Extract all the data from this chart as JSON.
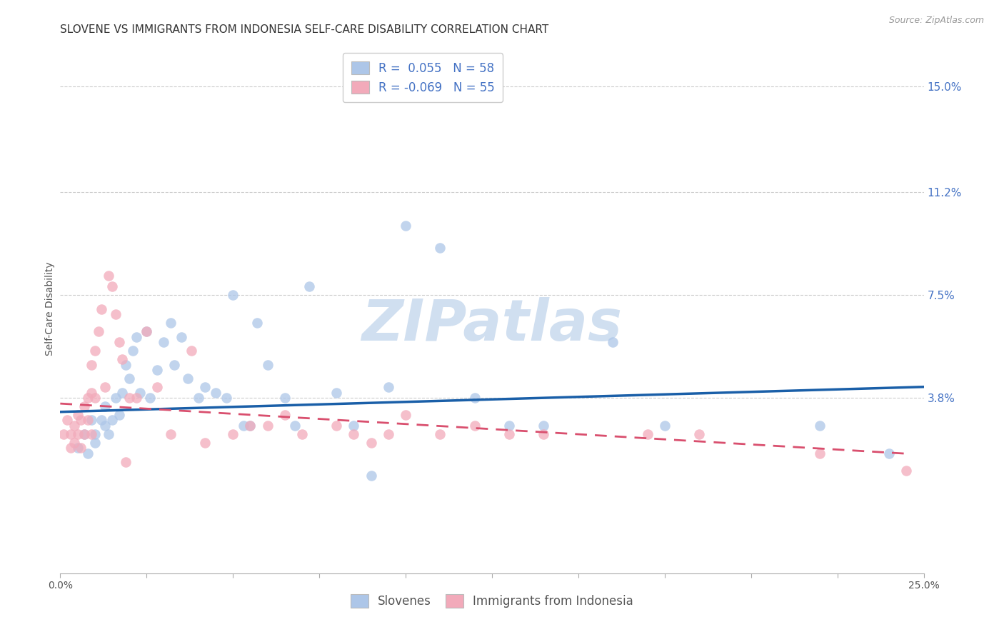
{
  "title": "SLOVENE VS IMMIGRANTS FROM INDONESIA SELF-CARE DISABILITY CORRELATION CHART",
  "source": "Source: ZipAtlas.com",
  "ylabel": "Self-Care Disability",
  "watermark": "ZIPatlas",
  "legend_entries": [
    {
      "label": "R =  0.055   N = 58",
      "color": "#adc6e8"
    },
    {
      "label": "R = -0.069   N = 55",
      "color": "#f2aaba"
    }
  ],
  "legend_labels": [
    "Slovenes",
    "Immigrants from Indonesia"
  ],
  "xlim": [
    0.0,
    0.25
  ],
  "ylim": [
    -0.025,
    0.165
  ],
  "right_yticks": [
    0.038,
    0.075,
    0.112,
    0.15
  ],
  "right_yticklabels": [
    "3.8%",
    "7.5%",
    "11.2%",
    "15.0%"
  ],
  "xticks": [
    0.0,
    0.025,
    0.05,
    0.075,
    0.1,
    0.125,
    0.15,
    0.175,
    0.2,
    0.225,
    0.25
  ],
  "xticklabels": [
    "0.0%",
    "",
    "",
    "",
    "",
    "",
    "",
    "",
    "",
    "",
    "25.0%"
  ],
  "blue_scatter_x": [
    0.005,
    0.007,
    0.008,
    0.009,
    0.01,
    0.01,
    0.012,
    0.013,
    0.013,
    0.014,
    0.015,
    0.016,
    0.017,
    0.018,
    0.019,
    0.02,
    0.021,
    0.022,
    0.023,
    0.025,
    0.026,
    0.028,
    0.03,
    0.032,
    0.033,
    0.035,
    0.037,
    0.04,
    0.042,
    0.045,
    0.048,
    0.05,
    0.053,
    0.055,
    0.057,
    0.06,
    0.065,
    0.068,
    0.072,
    0.08,
    0.085,
    0.09,
    0.095,
    0.1,
    0.11,
    0.12,
    0.13,
    0.14,
    0.16,
    0.175,
    0.22,
    0.24
  ],
  "blue_scatter_y": [
    0.02,
    0.025,
    0.018,
    0.03,
    0.025,
    0.022,
    0.03,
    0.028,
    0.035,
    0.025,
    0.03,
    0.038,
    0.032,
    0.04,
    0.05,
    0.045,
    0.055,
    0.06,
    0.04,
    0.062,
    0.038,
    0.048,
    0.058,
    0.065,
    0.05,
    0.06,
    0.045,
    0.038,
    0.042,
    0.04,
    0.038,
    0.075,
    0.028,
    0.028,
    0.065,
    0.05,
    0.038,
    0.028,
    0.078,
    0.04,
    0.028,
    0.01,
    0.042,
    0.1,
    0.092,
    0.038,
    0.028,
    0.028,
    0.058,
    0.028,
    0.028,
    0.018
  ],
  "pink_scatter_x": [
    0.001,
    0.002,
    0.003,
    0.003,
    0.004,
    0.004,
    0.005,
    0.005,
    0.006,
    0.006,
    0.007,
    0.007,
    0.008,
    0.008,
    0.009,
    0.009,
    0.009,
    0.01,
    0.01,
    0.011,
    0.012,
    0.013,
    0.014,
    0.015,
    0.016,
    0.017,
    0.018,
    0.019,
    0.02,
    0.022,
    0.025,
    0.028,
    0.032,
    0.038,
    0.042,
    0.05,
    0.055,
    0.06,
    0.065,
    0.07,
    0.08,
    0.085,
    0.09,
    0.095,
    0.1,
    0.11,
    0.12,
    0.13,
    0.14,
    0.17,
    0.185,
    0.22,
    0.245
  ],
  "pink_scatter_y": [
    0.025,
    0.03,
    0.025,
    0.02,
    0.028,
    0.022,
    0.032,
    0.025,
    0.03,
    0.02,
    0.035,
    0.025,
    0.038,
    0.03,
    0.05,
    0.04,
    0.025,
    0.055,
    0.038,
    0.062,
    0.07,
    0.042,
    0.082,
    0.078,
    0.068,
    0.058,
    0.052,
    0.015,
    0.038,
    0.038,
    0.062,
    0.042,
    0.025,
    0.055,
    0.022,
    0.025,
    0.028,
    0.028,
    0.032,
    0.025,
    0.028,
    0.025,
    0.022,
    0.025,
    0.032,
    0.025,
    0.028,
    0.025,
    0.025,
    0.025,
    0.025,
    0.018,
    0.012
  ],
  "blue_line_x": [
    0.0,
    0.25
  ],
  "blue_line_y": [
    0.033,
    0.042
  ],
  "pink_line_x": [
    0.0,
    0.245
  ],
  "pink_line_y": [
    0.036,
    0.018
  ],
  "dot_size": 110,
  "blue_color": "#adc6e8",
  "pink_color": "#f2aaba",
  "blue_line_color": "#1a5fa8",
  "pink_line_color": "#d94f6e",
  "background_color": "#ffffff",
  "grid_color": "#cccccc",
  "title_fontsize": 11,
  "axis_label_fontsize": 10,
  "tick_fontsize": 10,
  "right_tick_color": "#4472c4",
  "legend_fontsize": 12
}
